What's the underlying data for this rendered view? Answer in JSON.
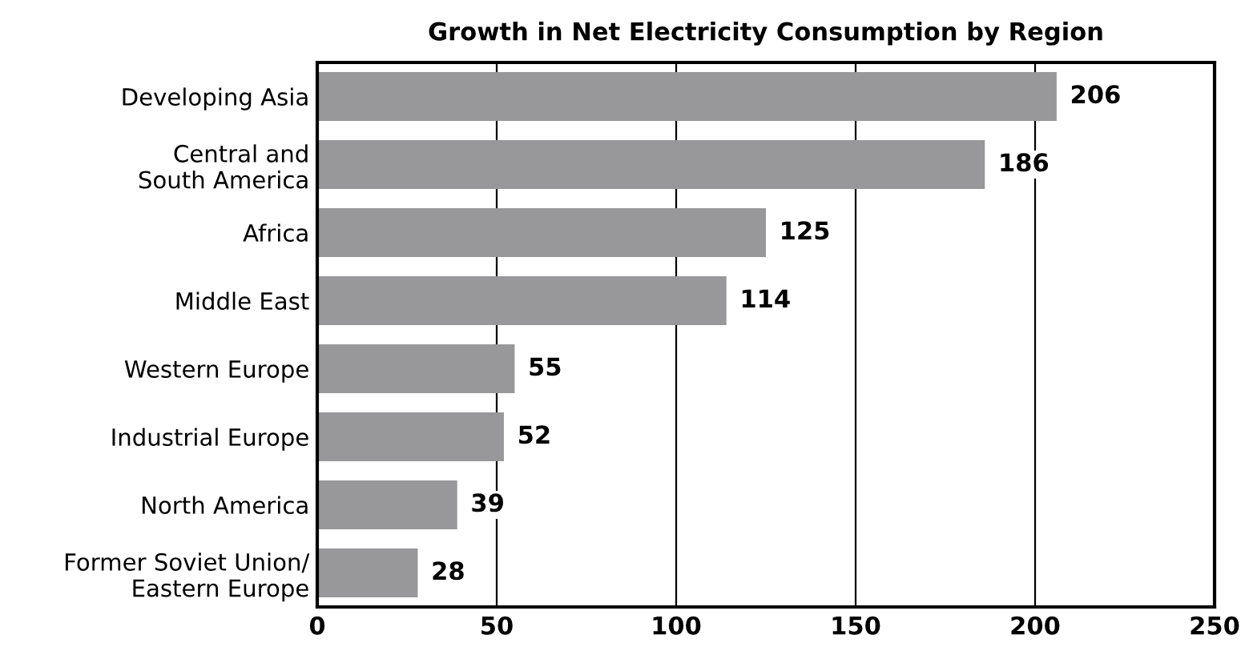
{
  "chart_data": {
    "type": "bar",
    "orientation": "horizontal",
    "title": "Growth in Net Electricity Consumption by Region",
    "categories": [
      "Developing Asia",
      "Central and\nSouth America",
      "Africa",
      "Middle East",
      "Western Europe",
      "Industrial Europe",
      "North America",
      "Former Soviet Union/\nEastern Europe"
    ],
    "values": [
      206,
      186,
      125,
      114,
      55,
      52,
      39,
      28
    ],
    "color": "#98989b",
    "xlim": [
      0,
      250
    ],
    "xticks": [
      0,
      50,
      100,
      150,
      200,
      250
    ],
    "grid": "x",
    "data_labels": true
  }
}
